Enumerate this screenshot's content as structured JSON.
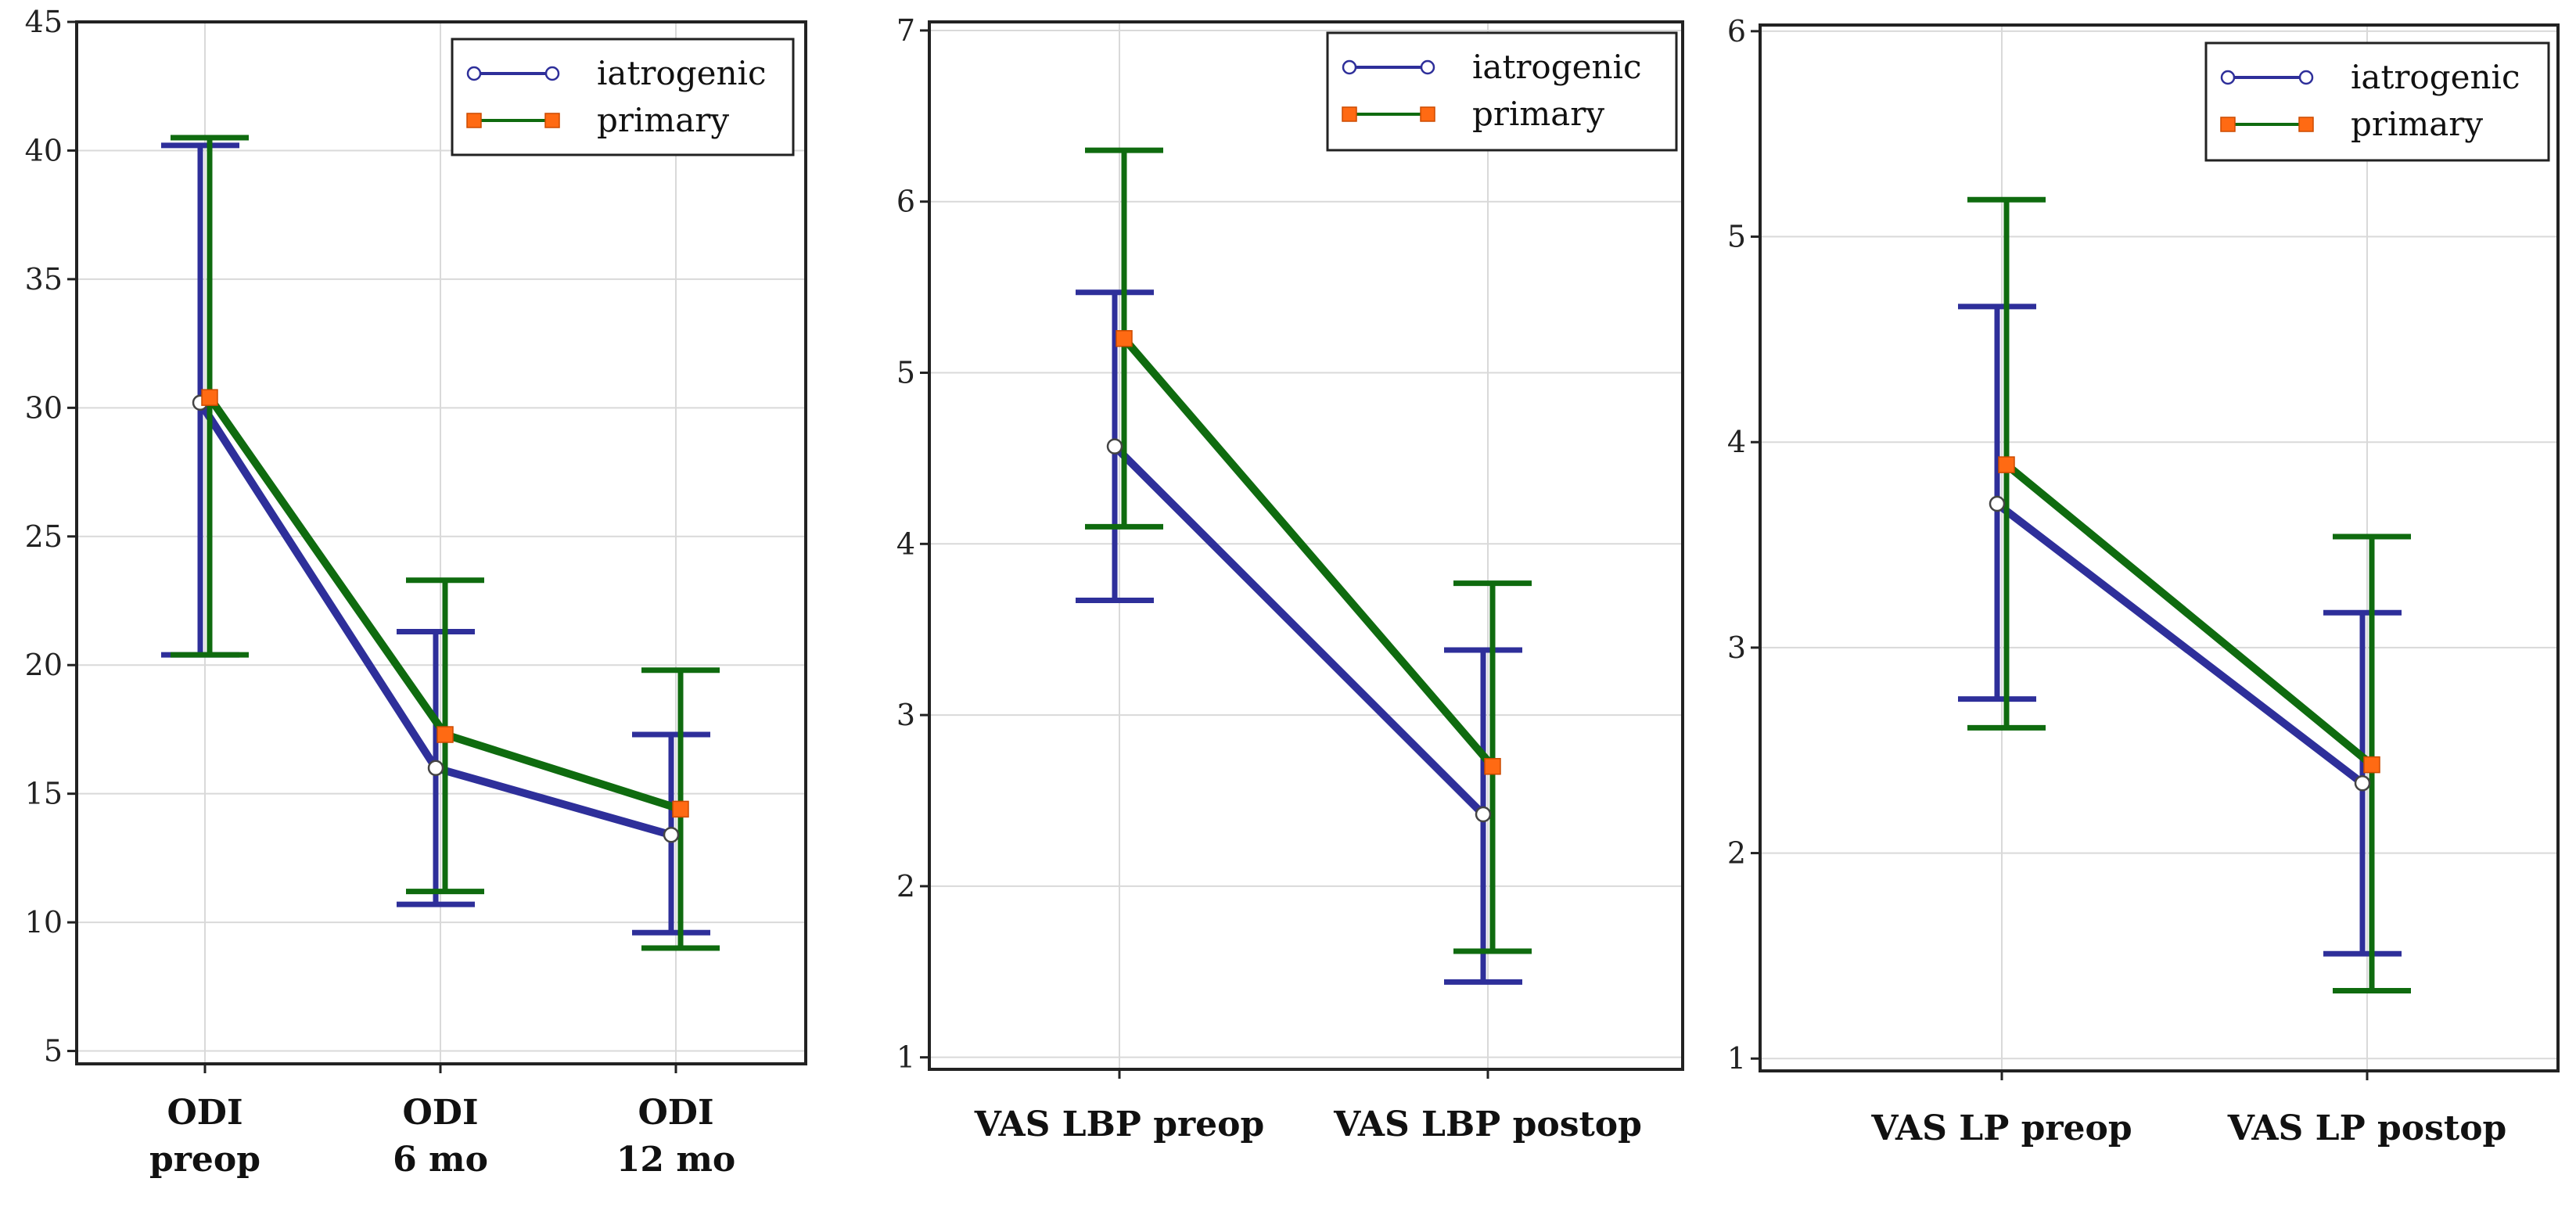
{
  "colors": {
    "iatrogenic": "#2e2f9a",
    "primary": "#0f6b0f",
    "primary_marker": "#ff6a13",
    "grid": "#d9d9d9",
    "frame": "#222222"
  },
  "chart_data": [
    {
      "type": "line",
      "title": "",
      "xlabel": "",
      "ylabel": "",
      "categories": [
        [
          "ODI",
          "preop"
        ],
        [
          "ODI",
          "6 mo"
        ],
        [
          "ODI",
          "12 mo"
        ]
      ],
      "ylim": [
        4.5,
        45
      ],
      "yticks": [
        5,
        10,
        15,
        20,
        25,
        30,
        35,
        40,
        45
      ],
      "grid": true,
      "legend": {
        "position": "top-right",
        "entries": [
          "iatrogenic",
          "primary"
        ]
      },
      "series": [
        {
          "name": "iatrogenic",
          "values": [
            30.2,
            16.0,
            13.4
          ],
          "err_low": [
            20.4,
            10.7,
            9.6
          ],
          "err_high": [
            40.2,
            21.3,
            17.3
          ],
          "marker": "circle"
        },
        {
          "name": "primary",
          "values": [
            30.4,
            17.3,
            14.4
          ],
          "err_low": [
            20.4,
            11.2,
            9.0
          ],
          "err_high": [
            40.5,
            23.3,
            19.8
          ],
          "marker": "square"
        }
      ]
    },
    {
      "type": "line",
      "title": "",
      "xlabel": "",
      "ylabel": "",
      "categories": [
        [
          "VAS LBP preop"
        ],
        [
          "VAS LBP postop"
        ]
      ],
      "ylim": [
        0.93,
        7.05
      ],
      "yticks": [
        1,
        2,
        3,
        4,
        5,
        6,
        7
      ],
      "grid": true,
      "legend": {
        "position": "top-right",
        "entries": [
          "iatrogenic",
          "primary"
        ]
      },
      "series": [
        {
          "name": "iatrogenic",
          "values": [
            4.57,
            2.42
          ],
          "err_low": [
            3.67,
            1.44
          ],
          "err_high": [
            5.47,
            3.38
          ],
          "marker": "circle"
        },
        {
          "name": "primary",
          "values": [
            5.2,
            2.7
          ],
          "err_low": [
            4.1,
            1.62
          ],
          "err_high": [
            6.3,
            3.77
          ],
          "marker": "square"
        }
      ]
    },
    {
      "type": "line",
      "title": "",
      "xlabel": "",
      "ylabel": "",
      "categories": [
        [
          "VAS LP preop"
        ],
        [
          "VAS LP postop"
        ]
      ],
      "ylim": [
        0.94,
        6.03
      ],
      "yticks": [
        1,
        2,
        3,
        4,
        5,
        6
      ],
      "grid": true,
      "legend": {
        "position": "top-right",
        "entries": [
          "iatrogenic",
          "primary"
        ]
      },
      "series": [
        {
          "name": "iatrogenic",
          "values": [
            3.7,
            2.34
          ],
          "err_low": [
            2.75,
            1.51
          ],
          "err_high": [
            4.66,
            3.17
          ],
          "marker": "circle"
        },
        {
          "name": "primary",
          "values": [
            3.89,
            2.43
          ],
          "err_low": [
            2.61,
            1.33
          ],
          "err_high": [
            5.18,
            3.54
          ],
          "marker": "square"
        }
      ]
    }
  ]
}
